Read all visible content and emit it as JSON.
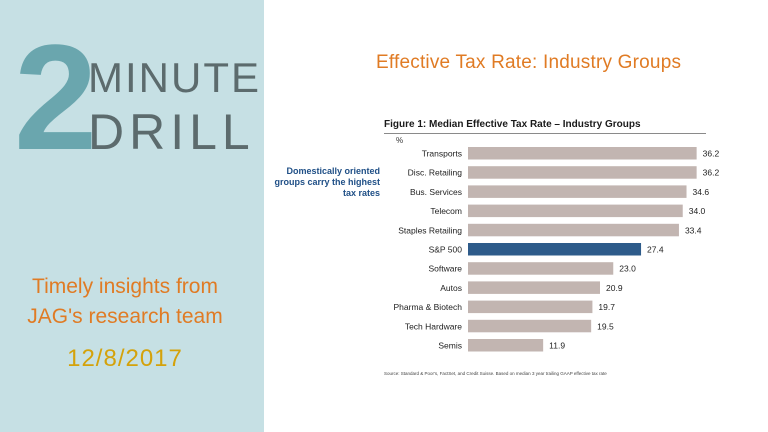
{
  "slide": {
    "logo": {
      "number": "2",
      "line1": "MINUTE",
      "line2": "DRILL"
    },
    "tagline_line1": "Timely insights from",
    "tagline_line2": "JAG's research team",
    "date": "12/8/2017",
    "headline": "Effective Tax Rate: Industry Groups"
  },
  "colors": {
    "panel_bg": "#c6e0e4",
    "accent_orange": "#e07b24",
    "date_gold": "#d4a20b",
    "bar_default": "#c2b5b1",
    "bar_highlight": "#2e5b8a",
    "note_blue": "#1f4f86"
  },
  "chart_data": {
    "type": "bar",
    "orientation": "horizontal",
    "title": "Figure 1: Median Effective Tax Rate – Industry Groups",
    "unit_label": "%",
    "annotation": "Domestically oriented groups carry the highest tax rates",
    "source": "Source: Standard & Poor's, FactSet, and Credit Suisse. Based on median 3 year trailing GAAP effective tax rate",
    "categories": [
      "Transports",
      "Disc. Retailing",
      "Bus. Services",
      "Telecom",
      "Staples Retailing",
      "S&P 500",
      "Software",
      "Autos",
      "Pharma & Biotech",
      "Tech Hardware",
      "Semis"
    ],
    "values": [
      36.2,
      36.2,
      34.6,
      34.0,
      33.4,
      27.4,
      23.0,
      20.9,
      19.7,
      19.5,
      11.9
    ],
    "value_labels": [
      "36.2",
      "36.2",
      "34.6",
      "34.0",
      "33.4",
      "27.4",
      "23.0",
      "20.9",
      "19.7",
      "19.5",
      "11.9"
    ],
    "highlight_category": "S&P 500",
    "xlim": [
      0,
      38
    ],
    "grid": false
  }
}
